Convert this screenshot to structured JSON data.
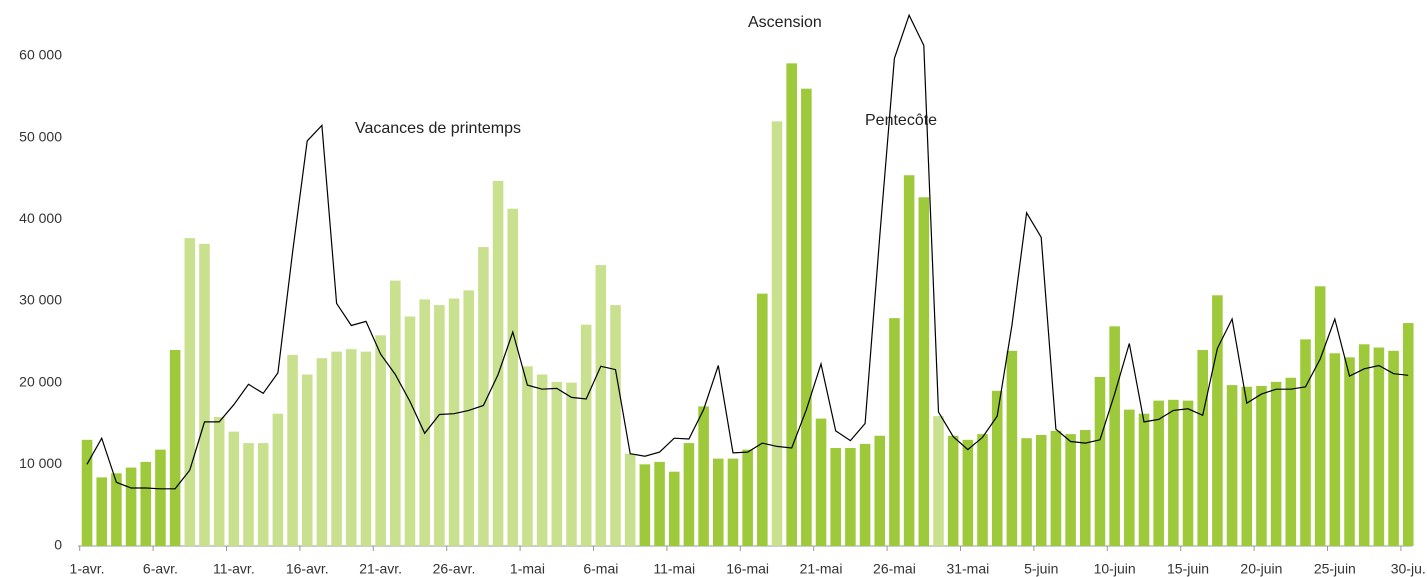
{
  "chart_data": {
    "type": "bar",
    "annotations": [
      "Vacances de printemps",
      "Ascension",
      "Pentecôte"
    ],
    "categories": [
      "1-avr.",
      null,
      null,
      null,
      null,
      "6-avr.",
      null,
      null,
      null,
      null,
      "11-avr.",
      null,
      null,
      null,
      null,
      "16-avr.",
      null,
      null,
      null,
      null,
      "21-avr.",
      null,
      null,
      null,
      null,
      "26-avr.",
      null,
      null,
      null,
      null,
      "1-mai",
      null,
      null,
      null,
      null,
      "6-mai",
      null,
      null,
      null,
      null,
      "11-mai",
      null,
      null,
      null,
      null,
      "16-mai",
      null,
      null,
      null,
      null,
      "21-mai",
      null,
      null,
      null,
      null,
      "26-mai",
      null,
      null,
      null,
      null,
      "31-mai",
      null,
      null,
      null,
      null,
      "5-juin",
      null,
      null,
      null,
      null,
      "10-juin",
      null,
      null,
      null,
      null,
      "15-juin",
      null,
      null,
      null,
      null,
      "20-juin",
      null,
      null,
      null,
      null,
      "25-juin",
      null,
      null,
      null,
      null,
      "30-ju."
    ],
    "series": [
      {
        "type": "bar",
        "colors": [
          "#9dc93b",
          "#9dc93b",
          "#9dc93b",
          "#9dc93b",
          "#9dc93b",
          "#9dc93b",
          "#9dc93b",
          "#c9e08f",
          "#c9e08f",
          "#c9e08f",
          "#c9e08f",
          "#c9e08f",
          "#c9e08f",
          "#c9e08f",
          "#c9e08f",
          "#c9e08f",
          "#c9e08f",
          "#c9e08f",
          "#c9e08f",
          "#c9e08f",
          "#c9e08f",
          "#c9e08f",
          "#c9e08f",
          "#c9e08f",
          "#c9e08f",
          "#c9e08f",
          "#c9e08f",
          "#c9e08f",
          "#c9e08f",
          "#c9e08f",
          "#c9e08f",
          "#c9e08f",
          "#c9e08f",
          "#c9e08f",
          "#c9e08f",
          "#c9e08f",
          "#c9e08f",
          "#c9e08f",
          "#9dc93b",
          "#9dc93b",
          "#9dc93b",
          "#9dc93b",
          "#9dc93b",
          "#9dc93b",
          "#9dc93b",
          "#9dc93b",
          "#9dc93b",
          "#c9e08f",
          "#9dc93b",
          "#9dc93b",
          "#9dc93b",
          "#9dc93b",
          "#9dc93b",
          "#9dc93b",
          "#9dc93b",
          "#9dc93b",
          "#9dc93b",
          "#9dc93b",
          "#c9e08f",
          "#9dc93b",
          "#9dc93b",
          "#9dc93b",
          "#9dc93b",
          "#9dc93b",
          "#9dc93b",
          "#9dc93b",
          "#9dc93b",
          "#9dc93b",
          "#9dc93b",
          "#9dc93b",
          "#9dc93b",
          "#9dc93b",
          "#9dc93b",
          "#9dc93b",
          "#9dc93b",
          "#9dc93b",
          "#9dc93b",
          "#9dc93b",
          "#9dc93b",
          "#9dc93b",
          "#9dc93b",
          "#9dc93b",
          "#9dc93b",
          "#9dc93b",
          "#9dc93b",
          "#9dc93b",
          "#9dc93b",
          "#9dc93b",
          "#9dc93b",
          "#9dc93b",
          "#9dc93b"
        ],
        "values": [
          13000,
          8400,
          8900,
          9600,
          10300,
          11800,
          24000,
          37700,
          37000,
          15800,
          14000,
          12600,
          12600,
          16200,
          23400,
          21000,
          23000,
          23800,
          24100,
          23800,
          25800,
          32500,
          28100,
          30200,
          29500,
          30300,
          31300,
          36600,
          44700,
          41300,
          22000,
          21000,
          20100,
          20000,
          27100,
          34400,
          29500,
          11300,
          10000,
          10300,
          9100,
          12600,
          17100,
          10700,
          10700,
          11800,
          30900,
          52000,
          59100,
          56000,
          15600,
          12000,
          12000,
          12500,
          13500,
          27900,
          45400,
          42700,
          15900,
          13500,
          13000,
          13700,
          19000,
          23900,
          13200,
          13600,
          14100,
          13700,
          14200,
          20700,
          26900,
          16700,
          16200,
          17800,
          17900,
          17800,
          24000,
          30700,
          19700,
          19500,
          19600,
          20100,
          20600,
          25300,
          31800,
          23600,
          23100,
          24700,
          24300,
          23900,
          27300
        ]
      },
      {
        "type": "line",
        "color": "#000000",
        "values": [
          10000,
          13200,
          7800,
          7100,
          7100,
          7000,
          7000,
          9300,
          15200,
          15200,
          17300,
          19800,
          18700,
          21200,
          36000,
          49600,
          51500,
          29700,
          27000,
          27500,
          23500,
          21000,
          17700,
          13800,
          16100,
          16200,
          16600,
          17200,
          21000,
          26200,
          19700,
          19200,
          19300,
          18200,
          18000,
          22000,
          21600,
          11300,
          11000,
          11500,
          13200,
          13100,
          16700,
          22100,
          11400,
          11500,
          12600,
          12200,
          12000,
          16700,
          22300,
          14100,
          12900,
          15000,
          38000,
          59700,
          65000,
          61300,
          16400,
          13400,
          11800,
          13300,
          15900,
          27000,
          40800,
          37800,
          14300,
          12800,
          12600,
          13000,
          18600,
          24800,
          15200,
          15500,
          16600,
          16800,
          16000,
          24200,
          27800,
          17500,
          18600,
          19200,
          19200,
          19500,
          22900,
          27800,
          20800,
          21700,
          22100,
          21100,
          20900
        ]
      }
    ],
    "ylim": [
      0,
      60000
    ],
    "yticks": [
      0,
      {
        "value": 10000,
        "label": "10 000"
      },
      {
        "value": 20000,
        "label": "20 000"
      },
      {
        "value": 30000,
        "label": "30 000"
      },
      {
        "value": 40000,
        "label": "40 000"
      },
      {
        "value": 50000,
        "label": "50 000"
      },
      {
        "value": 60000,
        "label": "60 000"
      }
    ]
  }
}
